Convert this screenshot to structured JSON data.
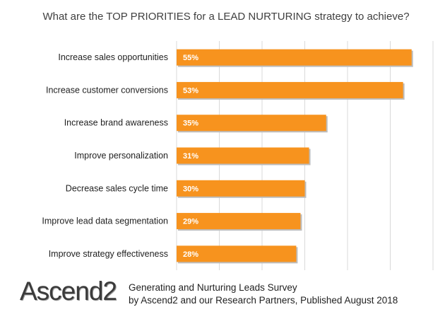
{
  "colors": {
    "bar": "#F7931E",
    "grid": "#D9D9D9",
    "text": "#222222"
  },
  "chart_data": {
    "type": "bar",
    "orientation": "horizontal",
    "title": "What are the TOP PRIORITIES for a LEAD NURTURING strategy to achieve?",
    "categories": [
      "Increase sales opportunities",
      "Increase customer conversions",
      "Increase brand awareness",
      "Improve personalization",
      "Decrease sales cycle time",
      "Improve lead data segmentation",
      "Improve strategy effectiveness"
    ],
    "values": [
      55,
      53,
      35,
      31,
      30,
      29,
      28
    ],
    "value_labels": [
      "55%",
      "53%",
      "35%",
      "31%",
      "30%",
      "29%",
      "28%"
    ],
    "xlim": [
      0,
      60
    ],
    "grid": true,
    "legend": "none"
  },
  "footer": {
    "logo": "Ascend2",
    "line1": "Generating and Nurturing Leads Survey",
    "line2": "by Ascend2 and our Research Partners, Published August 2018"
  }
}
